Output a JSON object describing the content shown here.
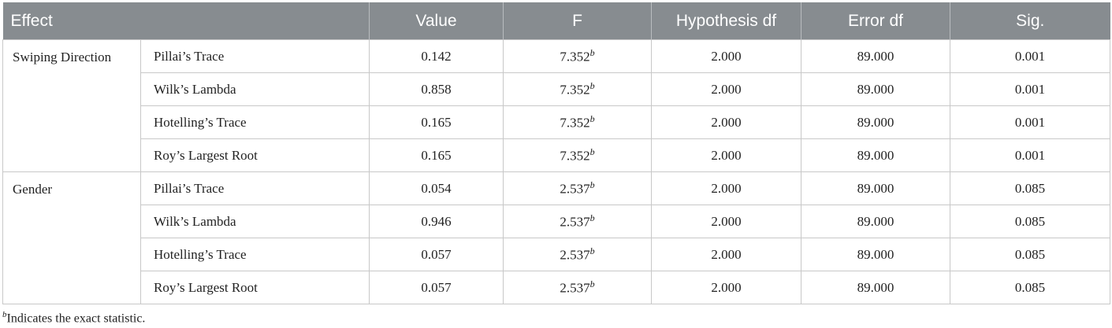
{
  "table": {
    "headers": [
      "Effect",
      "Value",
      "F",
      "Hypothesis df",
      "Error df",
      "Sig."
    ],
    "groups": [
      {
        "effect": "Swiping Direction",
        "rows": [
          [
            "Pillai’s Trace",
            "0.142",
            "7.352",
            "b",
            "2.000",
            "89.000",
            "0.001"
          ],
          [
            "Wilk’s Lambda",
            "0.858",
            "7.352",
            "b",
            "2.000",
            "89.000",
            "0.001"
          ],
          [
            "Hotelling’s Trace",
            "0.165",
            "7.352",
            "b",
            "2.000",
            "89.000",
            "0.001"
          ],
          [
            "Roy’s Largest Root",
            "0.165",
            "7.352",
            "b",
            "2.000",
            "89.000",
            "0.001"
          ]
        ]
      },
      {
        "effect": "Gender",
        "rows": [
          [
            "Pillai’s Trace",
            "0.054",
            "2.537",
            "b",
            "2.000",
            "89.000",
            "0.085"
          ],
          [
            "Wilk’s Lambda",
            "0.946",
            "2.537",
            "b",
            "2.000",
            "89.000",
            "0.085"
          ],
          [
            "Hotelling’s Trace",
            "0.057",
            "2.537",
            "b",
            "2.000",
            "89.000",
            "0.085"
          ],
          [
            "Roy’s Largest Root",
            "0.057",
            "2.537",
            "b",
            "2.000",
            "89.000",
            "0.085"
          ]
        ]
      }
    ]
  },
  "footnote": {
    "marker": "b",
    "text": "Indicates the exact statistic."
  }
}
